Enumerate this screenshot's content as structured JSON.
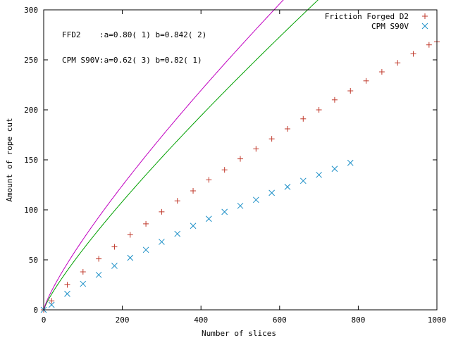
{
  "chart_data": {
    "type": "scatter",
    "xlabel": "Number of slices",
    "ylabel": "Amount of rope cut",
    "xlim": [
      0,
      1000
    ],
    "ylim": [
      0,
      300
    ],
    "xticks": [
      0,
      200,
      400,
      600,
      800,
      1000
    ],
    "yticks": [
      0,
      50,
      100,
      150,
      200,
      250,
      300
    ],
    "grid": false,
    "legend_position": "top-right",
    "annotations": [
      "FFD2    :a=0.80( 1) b=0.842( 2)",
      "CPM S90V:a=0.62( 3) b=0.82( 1)"
    ],
    "series": [
      {
        "name": "Friction Forged D2",
        "marker": "plus",
        "color": "#c0392b",
        "fit_color": "#00a000",
        "fit": {
          "a": 0.8,
          "b": 0.842
        },
        "x": [
          0,
          20,
          60,
          100,
          140,
          180,
          220,
          260,
          300,
          340,
          380,
          420,
          460,
          500,
          540,
          580,
          620,
          660,
          700,
          740,
          780,
          820,
          860,
          900,
          940,
          980,
          1000
        ],
        "y": [
          0,
          9,
          25,
          38,
          51,
          63,
          75,
          86,
          98,
          109,
          119,
          130,
          140,
          151,
          161,
          171,
          181,
          191,
          200,
          210,
          219,
          229,
          238,
          247,
          256,
          265,
          268
        ]
      },
      {
        "name": "CPM S90V",
        "marker": "cross",
        "color": "#1e90c8",
        "fit_color": "#c000c0",
        "fit": {
          "a": 0.62,
          "b": 0.82
        },
        "x": [
          0,
          20,
          60,
          100,
          140,
          180,
          220,
          260,
          300,
          340,
          380,
          420,
          460,
          500,
          540,
          580,
          620,
          660,
          700,
          740,
          780
        ],
        "y": [
          0,
          5,
          16,
          26,
          35,
          44,
          52,
          60,
          68,
          76,
          84,
          91,
          98,
          104,
          110,
          117,
          123,
          129,
          135,
          141,
          147
        ]
      }
    ]
  }
}
